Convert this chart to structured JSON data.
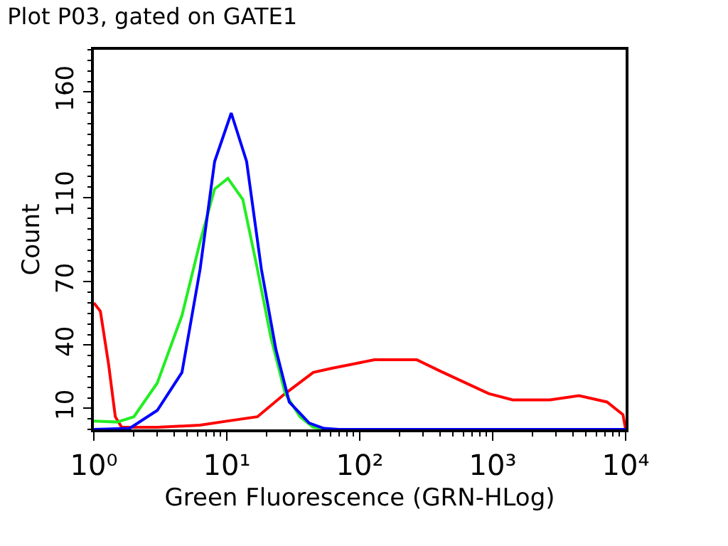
{
  "chart_data": {
    "type": "line",
    "title": "Plot P03, gated on GATE1",
    "xlabel": "Green Fluorescence (GRN-HLog)",
    "ylabel": "Count",
    "log": "x",
    "grid": false,
    "marker": "none",
    "line_style": "solid",
    "xlim": [
      1,
      10000
    ],
    "xticks": [
      {
        "value": 1,
        "label": "10⁰"
      },
      {
        "value": 10,
        "label": "10¹"
      },
      {
        "value": 100,
        "label": "10²"
      },
      {
        "value": 1000,
        "label": "10³"
      },
      {
        "value": 10000,
        "label": "10⁴"
      }
    ],
    "ylim": [
      0,
      180
    ],
    "yticks": [
      10,
      40,
      70,
      110,
      160
    ],
    "series": [
      {
        "color": "#ff0000",
        "x": [
          1,
          1.12,
          1.29,
          1.45,
          1.62,
          3,
          6.3,
          10.2,
          17,
          27.5,
          44.7,
          61.7,
          129,
          269,
          407,
          933,
          1413,
          2692,
          4467,
          7244,
          9550,
          10000
        ],
        "values": [
          60,
          56,
          31,
          6,
          1,
          1,
          2,
          4,
          6,
          17,
          27,
          29,
          33,
          33,
          27.5,
          17,
          14,
          14,
          16,
          13,
          7,
          0
        ]
      },
      {
        "color": "#22ee22",
        "x": [
          1,
          1.5,
          2,
          3,
          4.6,
          6.3,
          8.1,
          10.2,
          13.2,
          17,
          21.4,
          27.5,
          35.5,
          44.7,
          60,
          10000
        ],
        "values": [
          4,
          3.5,
          6,
          22,
          54,
          89,
          114,
          119,
          109,
          76,
          44,
          17,
          6,
          1,
          0,
          0
        ]
      },
      {
        "color": "#0000ff",
        "x": [
          1,
          1.86,
          3,
          4.6,
          6.3,
          8.1,
          10.8,
          14.1,
          18.2,
          23.4,
          29.5,
          41.7,
          53.7,
          70,
          10000
        ],
        "values": [
          0,
          0.5,
          9,
          27,
          76,
          127,
          150,
          127,
          76,
          38,
          13,
          3,
          0.5,
          0,
          0
        ]
      }
    ]
  }
}
